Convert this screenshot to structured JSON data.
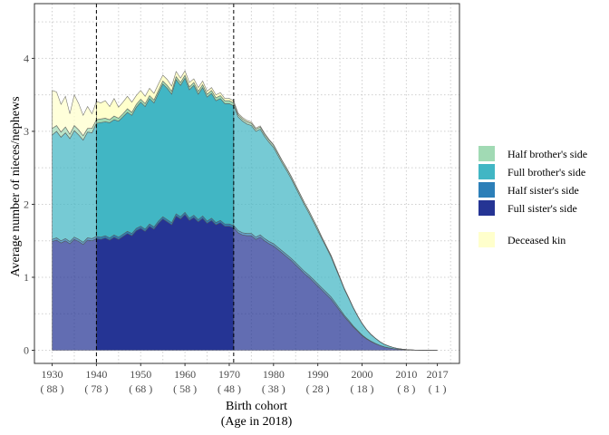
{
  "chart_data": {
    "type": "area",
    "stacked": true,
    "xlabel": "Birth cohort",
    "xlabel_sub": "(Age in 2018)",
    "ylabel": "Average number of nieces/nephews",
    "xlim": [
      1926,
      2022
    ],
    "ylim": [
      -0.18,
      4.75
    ],
    "yticks": [
      0,
      1,
      2,
      3,
      4
    ],
    "xticks": [
      {
        "x": 1930,
        "label": "1930",
        "age": "( 88 )"
      },
      {
        "x": 1940,
        "label": "1940",
        "age": "( 78 )"
      },
      {
        "x": 1950,
        "label": "1950",
        "age": "( 68 )"
      },
      {
        "x": 1960,
        "label": "1960",
        "age": "( 58 )"
      },
      {
        "x": 1970,
        "label": "1970",
        "age": "( 48 )"
      },
      {
        "x": 1980,
        "label": "1980",
        "age": "( 38 )"
      },
      {
        "x": 1990,
        "label": "1990",
        "age": "( 28 )"
      },
      {
        "x": 2000,
        "label": "2000",
        "age": "( 18 )"
      },
      {
        "x": 2010,
        "label": "2010",
        "age": "( 8 )"
      },
      {
        "x": 2017,
        "label": "2017",
        "age": "( 1 )"
      }
    ],
    "grid": true,
    "legend_position": "right",
    "highlight_range": [
      1940,
      1971
    ],
    "reference_lines": [
      1940,
      1971
    ],
    "x": [
      1930,
      1931,
      1932,
      1933,
      1934,
      1935,
      1936,
      1937,
      1938,
      1939,
      1940,
      1941,
      1942,
      1943,
      1944,
      1945,
      1946,
      1947,
      1948,
      1949,
      1950,
      1951,
      1952,
      1953,
      1954,
      1955,
      1956,
      1957,
      1958,
      1959,
      1960,
      1961,
      1962,
      1963,
      1964,
      1965,
      1966,
      1967,
      1968,
      1969,
      1970,
      1971,
      1972,
      1973,
      1974,
      1975,
      1976,
      1977,
      1978,
      1979,
      1980,
      1981,
      1982,
      1983,
      1984,
      1985,
      1986,
      1987,
      1988,
      1989,
      1990,
      1991,
      1992,
      1993,
      1994,
      1995,
      1996,
      1997,
      1998,
      1999,
      2000,
      2001,
      2002,
      2003,
      2004,
      2005,
      2006,
      2007,
      2008,
      2009,
      2010,
      2011,
      2012,
      2013,
      2014,
      2015,
      2016,
      2017
    ],
    "series": [
      {
        "name": "Full sister's side",
        "color": "#253494",
        "values": [
          1.49,
          1.51,
          1.47,
          1.5,
          1.46,
          1.52,
          1.49,
          1.45,
          1.51,
          1.5,
          1.53,
          1.52,
          1.54,
          1.51,
          1.55,
          1.52,
          1.56,
          1.6,
          1.57,
          1.64,
          1.67,
          1.63,
          1.7,
          1.66,
          1.74,
          1.8,
          1.76,
          1.72,
          1.84,
          1.8,
          1.86,
          1.78,
          1.82,
          1.76,
          1.81,
          1.74,
          1.78,
          1.72,
          1.75,
          1.7,
          1.7,
          1.68,
          1.61,
          1.58,
          1.57,
          1.57,
          1.52,
          1.55,
          1.5,
          1.46,
          1.43,
          1.38,
          1.33,
          1.28,
          1.23,
          1.17,
          1.11,
          1.05,
          1.0,
          0.94,
          0.88,
          0.82,
          0.76,
          0.7,
          0.62,
          0.54,
          0.46,
          0.39,
          0.32,
          0.26,
          0.2,
          0.155,
          0.12,
          0.09,
          0.065,
          0.045,
          0.032,
          0.022,
          0.015,
          0.01,
          0.006,
          0.004,
          0.002,
          0.001,
          0.0005,
          0.0002,
          0.0001,
          0.0
        ]
      },
      {
        "name": "Half sister's side",
        "color": "#2c7fb8",
        "values": [
          0.03,
          0.03,
          0.03,
          0.03,
          0.03,
          0.03,
          0.03,
          0.03,
          0.03,
          0.03,
          0.03,
          0.03,
          0.03,
          0.03,
          0.03,
          0.03,
          0.03,
          0.03,
          0.03,
          0.03,
          0.03,
          0.03,
          0.03,
          0.03,
          0.03,
          0.03,
          0.03,
          0.03,
          0.03,
          0.03,
          0.03,
          0.03,
          0.03,
          0.03,
          0.03,
          0.03,
          0.03,
          0.03,
          0.03,
          0.03,
          0.03,
          0.03,
          0.03,
          0.03,
          0.03,
          0.03,
          0.03,
          0.03,
          0.03,
          0.03,
          0.03,
          0.03,
          0.03,
          0.03,
          0.03,
          0.03,
          0.03,
          0.03,
          0.03,
          0.03,
          0.03,
          0.03,
          0.03,
          0.03,
          0.03,
          0.025,
          0.02,
          0.02,
          0.015,
          0.012,
          0.01,
          0.008,
          0.006,
          0.004,
          0.003,
          0.002,
          0.001,
          0.001,
          0.0,
          0.0,
          0.0,
          0.0,
          0.0,
          0.0,
          0.0,
          0.0,
          0.0,
          0.0
        ]
      },
      {
        "name": "Full brother's side",
        "color": "#41b6c4",
        "values": [
          1.43,
          1.46,
          1.42,
          1.45,
          1.41,
          1.46,
          1.43,
          1.4,
          1.45,
          1.45,
          1.55,
          1.57,
          1.56,
          1.58,
          1.58,
          1.59,
          1.61,
          1.63,
          1.62,
          1.66,
          1.7,
          1.68,
          1.72,
          1.7,
          1.75,
          1.82,
          1.8,
          1.76,
          1.84,
          1.8,
          1.84,
          1.76,
          1.78,
          1.72,
          1.76,
          1.7,
          1.71,
          1.67,
          1.67,
          1.65,
          1.65,
          1.64,
          1.56,
          1.53,
          1.5,
          1.48,
          1.45,
          1.45,
          1.4,
          1.36,
          1.32,
          1.26,
          1.2,
          1.15,
          1.09,
          1.03,
          0.97,
          0.91,
          0.85,
          0.79,
          0.73,
          0.67,
          0.61,
          0.55,
          0.48,
          0.42,
          0.355,
          0.3,
          0.245,
          0.195,
          0.155,
          0.12,
          0.09,
          0.07,
          0.05,
          0.035,
          0.025,
          0.016,
          0.01,
          0.006,
          0.004,
          0.002,
          0.001,
          0.0005,
          0.0002,
          0.0001,
          0.0,
          0.0
        ]
      },
      {
        "name": "Half brother's side",
        "color": "#a1dab4",
        "values": [
          0.09,
          0.08,
          0.07,
          0.08,
          0.06,
          0.07,
          0.07,
          0.06,
          0.05,
          0.06,
          0.05,
          0.05,
          0.05,
          0.04,
          0.05,
          0.04,
          0.04,
          0.05,
          0.04,
          0.04,
          0.04,
          0.04,
          0.04,
          0.04,
          0.04,
          0.04,
          0.04,
          0.04,
          0.04,
          0.04,
          0.04,
          0.04,
          0.04,
          0.04,
          0.04,
          0.04,
          0.04,
          0.04,
          0.04,
          0.04,
          0.04,
          0.04,
          0.03,
          0.03,
          0.03,
          0.03,
          0.03,
          0.03,
          0.03,
          0.03,
          0.03,
          0.03,
          0.03,
          0.03,
          0.03,
          0.03,
          0.03,
          0.03,
          0.03,
          0.03,
          0.03,
          0.02,
          0.02,
          0.02,
          0.02,
          0.015,
          0.012,
          0.01,
          0.008,
          0.006,
          0.005,
          0.004,
          0.003,
          0.002,
          0.001,
          0.001,
          0.0,
          0.0,
          0.0,
          0.0,
          0.0,
          0.0,
          0.0,
          0.0,
          0.0,
          0.0,
          0.0,
          0.0
        ]
      },
      {
        "name": "Deceased kin",
        "color": "#ffffcc",
        "values": [
          0.52,
          0.46,
          0.38,
          0.42,
          0.28,
          0.42,
          0.36,
          0.28,
          0.3,
          0.2,
          0.25,
          0.22,
          0.24,
          0.18,
          0.24,
          0.15,
          0.16,
          0.17,
          0.14,
          0.12,
          0.12,
          0.1,
          0.1,
          0.09,
          0.09,
          0.08,
          0.08,
          0.07,
          0.07,
          0.06,
          0.06,
          0.06,
          0.05,
          0.05,
          0.05,
          0.04,
          0.04,
          0.04,
          0.04,
          0.03,
          0.03,
          0.03,
          0.02,
          0.02,
          0.02,
          0.02,
          0.015,
          0.015,
          0.012,
          0.01,
          0.01,
          0.008,
          0.007,
          0.006,
          0.005,
          0.004,
          0.003,
          0.003,
          0.002,
          0.002,
          0.002,
          0.001,
          0.001,
          0.001,
          0.001,
          0.0,
          0.0,
          0.0,
          0.0,
          0.0,
          0.0,
          0.0,
          0.0,
          0.0,
          0.0,
          0.0,
          0.0,
          0.0,
          0.0,
          0.0,
          0.0,
          0.0,
          0.0,
          0.0,
          0.0,
          0.0,
          0.0,
          0.0
        ]
      }
    ],
    "legend_order": [
      "Half brother's side",
      "Full brother's side",
      "Half sister's side",
      "Full sister's side",
      "Deceased kin"
    ]
  }
}
